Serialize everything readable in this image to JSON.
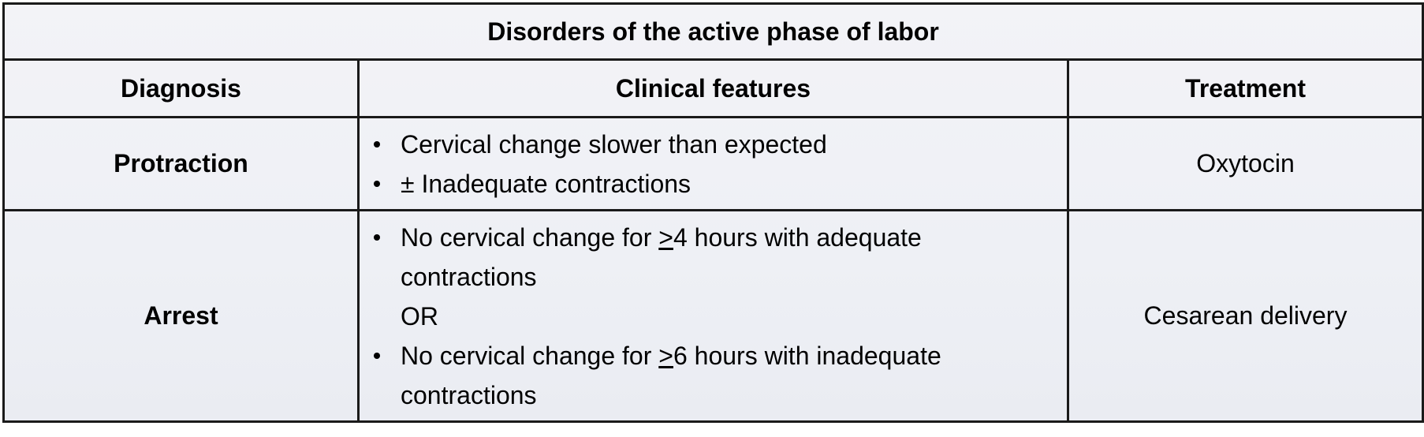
{
  "table": {
    "title": "Disorders of the active phase of labor",
    "headers": {
      "diagnosis": "Diagnosis",
      "features": "Clinical features",
      "treatment": "Treatment"
    },
    "rows": [
      {
        "diagnosis": "Protraction",
        "features": [
          "Cervical change slower than expected",
          "± Inadequate contractions"
        ],
        "treatment": "Oxytocin"
      },
      {
        "diagnosis": "Arrest",
        "features": [
          {
            "before": "No cervical change for ",
            "underlined": ">",
            "after": "4 hours with adequate"
          },
          "contractions",
          "OR",
          {
            "before": "No cervical change for ",
            "underlined": ">",
            "after": "6 hours with inadequate"
          },
          "contractions"
        ],
        "treatment": "Cesarean delivery"
      }
    ]
  }
}
